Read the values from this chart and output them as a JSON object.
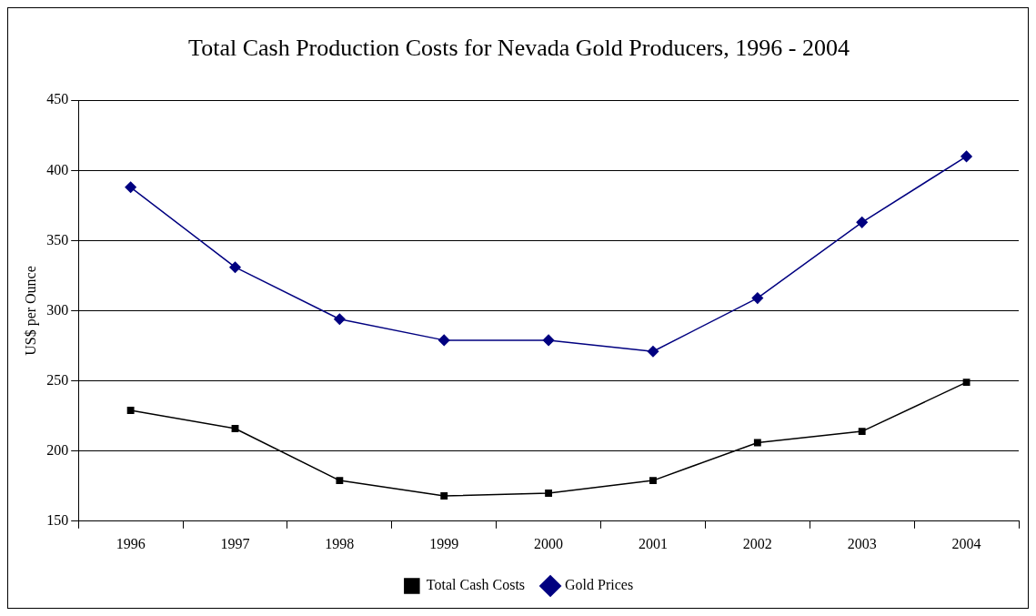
{
  "chart_data": {
    "type": "line",
    "title": "Total Cash Production Costs for Nevada Gold Producers, 1996 - 2004",
    "ylabel": "US$ per Ounce",
    "categories": [
      "1996",
      "1997",
      "1998",
      "1999",
      "2000",
      "2001",
      "2002",
      "2003",
      "2004"
    ],
    "series": [
      {
        "name": "Total Cash Costs",
        "color": "#000000",
        "marker": "square",
        "values": [
          229,
          216,
          179,
          168,
          170,
          179,
          206,
          214,
          249
        ]
      },
      {
        "name": "Gold Prices",
        "color": "#000080",
        "marker": "diamond",
        "values": [
          388,
          331,
          294,
          279,
          279,
          271,
          309,
          363,
          410
        ]
      }
    ],
    "ylim": [
      150,
      450
    ],
    "yticks": [
      150,
      200,
      250,
      300,
      350,
      400,
      450
    ],
    "grid": "y",
    "legend": "bottom",
    "line_style": "solid"
  }
}
